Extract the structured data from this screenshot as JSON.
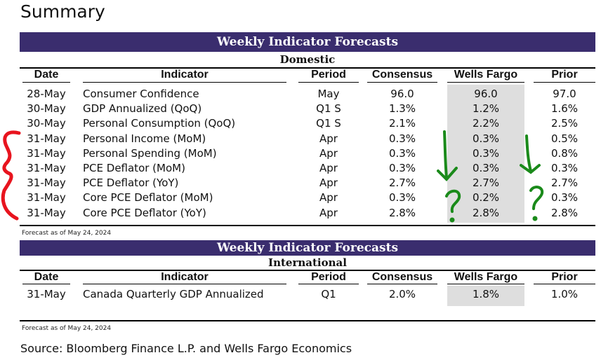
{
  "page_title": "Summary",
  "colors": {
    "banner": "#3a2d6e",
    "wf_shade": "#dedede",
    "red_annotation": "#e8141e",
    "green_annotation": "#1a8a1a"
  },
  "columns": {
    "date": "Date",
    "indicator": "Indicator",
    "period": "Period",
    "consensus": "Consensus",
    "wells_fargo": "Wells Fargo",
    "prior": "Prior"
  },
  "domestic": {
    "banner": "Weekly Indicator Forecasts",
    "label": "Domestic",
    "rows": [
      {
        "date": "28-May",
        "indicator": "Consumer Confidence",
        "period": "May",
        "consensus": "96.0",
        "wells_fargo": "96.0",
        "prior": "97.0"
      },
      {
        "date": "30-May",
        "indicator": "GDP Annualized (QoQ)",
        "period": "Q1 S",
        "consensus": "1.3%",
        "wells_fargo": "1.2%",
        "prior": "1.6%"
      },
      {
        "date": "30-May",
        "indicator": "Personal Consumption (QoQ)",
        "period": "Q1 S",
        "consensus": "2.1%",
        "wells_fargo": "2.2%",
        "prior": "2.5%"
      },
      {
        "date": "31-May",
        "indicator": "Personal Income (MoM)",
        "period": "Apr",
        "consensus": "0.3%",
        "wells_fargo": "0.3%",
        "prior": "0.5%"
      },
      {
        "date": "31-May",
        "indicator": "Personal Spending (MoM)",
        "period": "Apr",
        "consensus": "0.3%",
        "wells_fargo": "0.3%",
        "prior": "0.8%"
      },
      {
        "date": "31-May",
        "indicator": "PCE Deflator (MoM)",
        "period": "Apr",
        "consensus": "0.3%",
        "wells_fargo": "0.3%",
        "prior": "0.3%"
      },
      {
        "date": "31-May",
        "indicator": "PCE Deflator (YoY)",
        "period": "Apr",
        "consensus": "2.7%",
        "wells_fargo": "2.7%",
        "prior": "2.7%"
      },
      {
        "date": "31-May",
        "indicator": "Core PCE Deflator (MoM)",
        "period": "Apr",
        "consensus": "0.3%",
        "wells_fargo": "0.2%",
        "prior": "0.3%"
      },
      {
        "date": "31-May",
        "indicator": "Core PCE Deflator (YoY)",
        "period": "Apr",
        "consensus": "2.8%",
        "wells_fargo": "2.8%",
        "prior": "2.8%"
      }
    ],
    "footnote": "Forecast as of May 24, 2024"
  },
  "international": {
    "banner": "Weekly Indicator Forecasts",
    "label": "International",
    "rows": [
      {
        "date": "31-May",
        "indicator": "Canada Quarterly GDP Annualized",
        "period": "Q1",
        "consensus": "2.0%",
        "wells_fargo": "1.8%",
        "prior": "1.0%"
      }
    ],
    "footnote": "Forecast as of May 24, 2024"
  },
  "source": "Source: Bloomberg Finance L.P. and Wells Fargo Economics",
  "annotations": [
    "red-bracket",
    "green-down-arrow-wells-fargo",
    "green-down-arrow-prior",
    "green-question-mark-wells-fargo",
    "green-question-mark-prior"
  ]
}
